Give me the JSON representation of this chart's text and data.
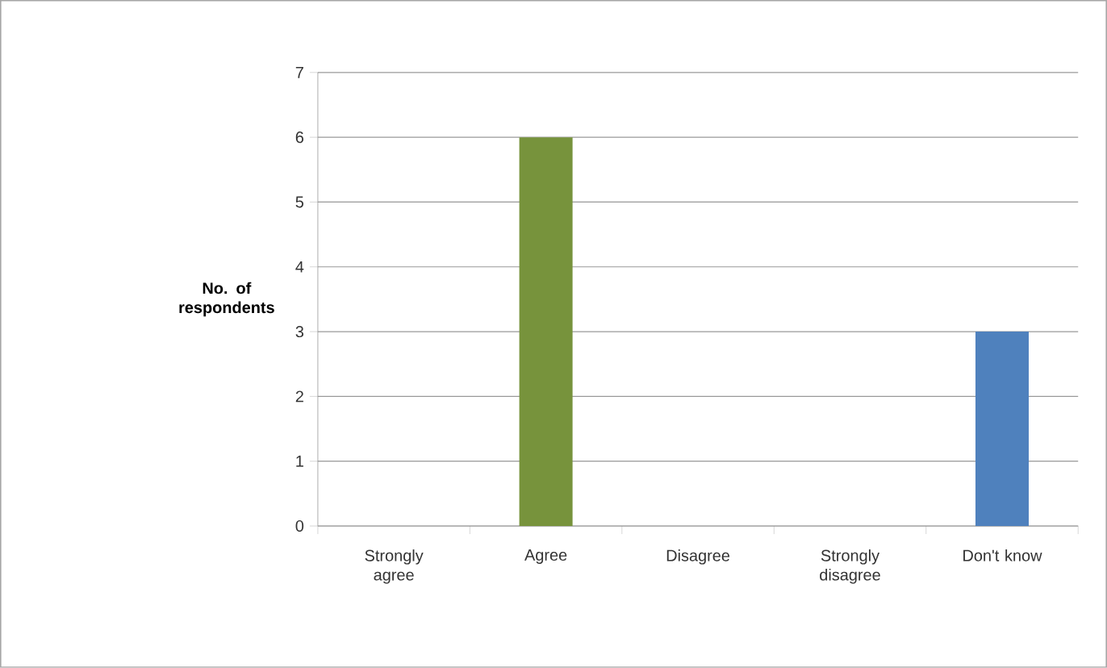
{
  "chart_data": {
    "type": "bar",
    "ylabel": "No. of respondents",
    "categories": [
      "Strongly agree",
      "Agree",
      "Disagree",
      "Strongly disagree",
      "Don't know"
    ],
    "values": [
      0,
      6,
      0,
      0,
      3
    ],
    "colors": [
      "#77933c",
      "#77933c",
      "#4f81bd",
      "#4f81bd",
      "#4f81bd"
    ],
    "ylim": [
      0,
      7
    ],
    "yticks": [
      0,
      1,
      2,
      3,
      4,
      5,
      6,
      7
    ],
    "grid": "y"
  }
}
